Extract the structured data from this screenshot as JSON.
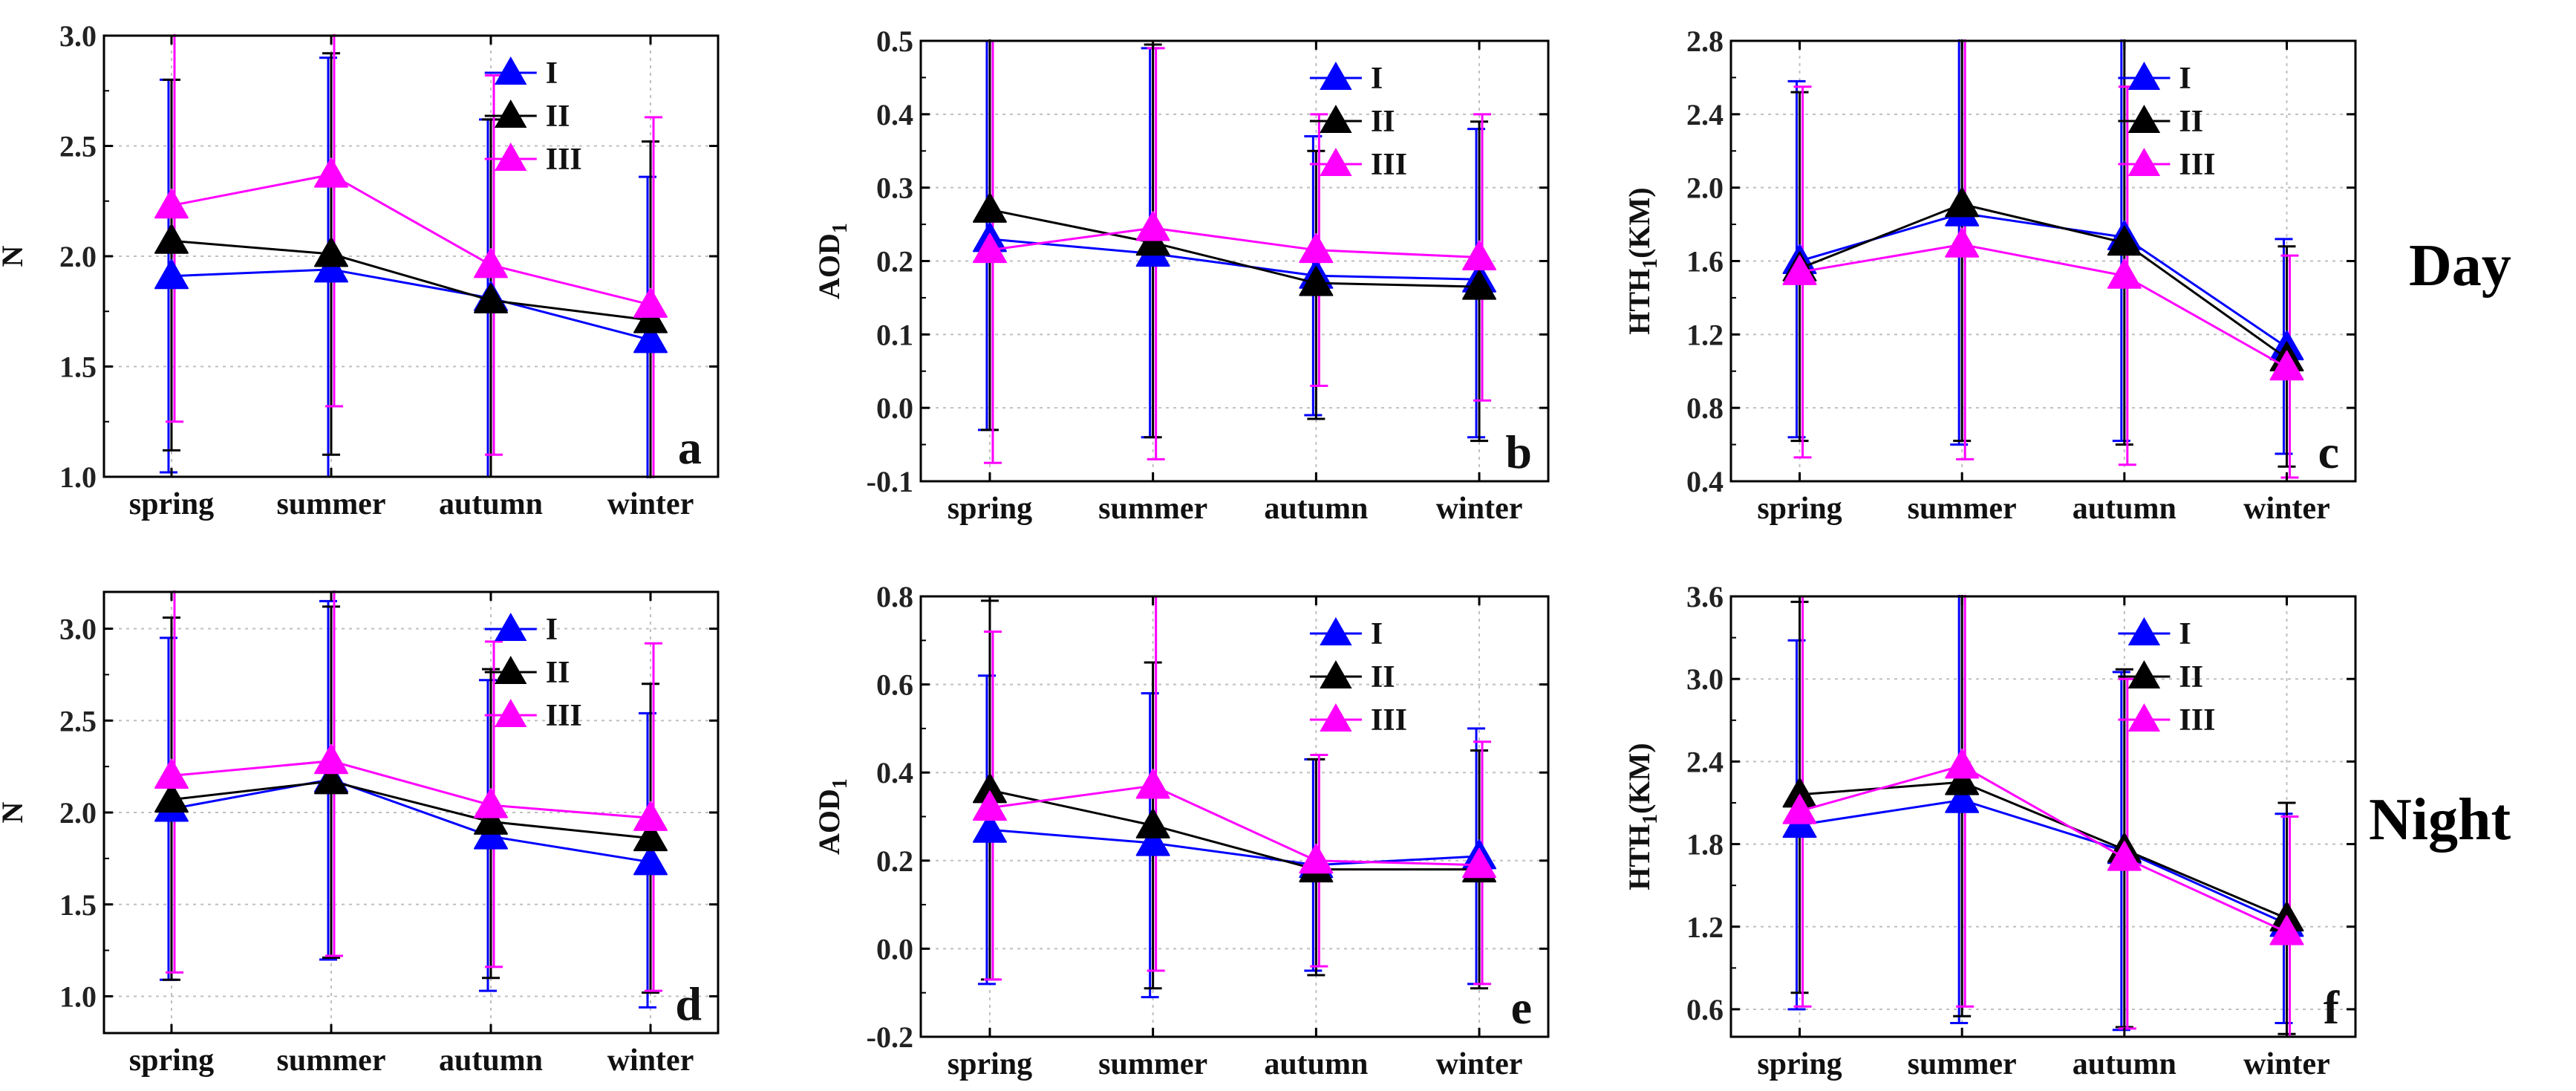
{
  "colors": {
    "I": "#0000ff",
    "II": "#000000",
    "III": "#ff00ff",
    "grid": "#bfbfbf",
    "axis": "#000000"
  },
  "row_labels": {
    "day": "Day",
    "night": "Night"
  },
  "chart_data": [
    {
      "panel": "a",
      "type": "line",
      "ylabel": "N",
      "ylim": [
        1.0,
        3.0
      ],
      "yticks": [
        "1.0",
        "1.5",
        "2.0",
        "2.5",
        "3.0"
      ],
      "categories": [
        "spring",
        "summer",
        "autumn",
        "winter"
      ],
      "legend_position": "top-right",
      "series": [
        {
          "name": "I",
          "values": [
            1.91,
            1.94,
            1.81,
            1.62
          ],
          "err_low": [
            1.02,
            1.0,
            1.0,
            0.88
          ],
          "err_high": [
            2.8,
            2.9,
            2.62,
            2.36
          ]
        },
        {
          "name": "II",
          "values": [
            2.07,
            2.01,
            1.8,
            1.71
          ],
          "err_low": [
            1.12,
            1.1,
            1.0,
            0.9
          ],
          "err_high": [
            2.8,
            2.92,
            2.62,
            2.52
          ]
        },
        {
          "name": "III",
          "values": [
            2.23,
            2.37,
            1.96,
            1.78
          ],
          "err_low": [
            1.25,
            1.32,
            1.1,
            0.93
          ],
          "err_high": [
            3.2,
            3.4,
            2.82,
            2.63
          ]
        }
      ]
    },
    {
      "panel": "b",
      "type": "line",
      "ylabel": "AOD",
      "ylabel_sub": "1",
      "ylim": [
        -0.1,
        0.5
      ],
      "yticks": [
        "-0.1",
        "0.0",
        "0.1",
        "0.2",
        "0.3",
        "0.4",
        "0.5"
      ],
      "categories": [
        "spring",
        "summer",
        "autumn",
        "winter"
      ],
      "legend_position": "top-right",
      "series": [
        {
          "name": "I",
          "values": [
            0.23,
            0.21,
            0.18,
            0.175
          ],
          "err_low": [
            -0.03,
            -0.04,
            -0.01,
            -0.04
          ],
          "err_high": [
            0.5,
            0.49,
            0.37,
            0.38
          ]
        },
        {
          "name": "II",
          "values": [
            0.27,
            0.225,
            0.17,
            0.165
          ],
          "err_low": [
            -0.03,
            -0.04,
            -0.015,
            -0.045
          ],
          "err_high": [
            0.57,
            0.495,
            0.35,
            0.39
          ]
        },
        {
          "name": "III",
          "values": [
            0.215,
            0.245,
            0.215,
            0.205
          ],
          "err_low": [
            -0.075,
            -0.07,
            0.03,
            0.01
          ],
          "err_high": [
            0.5,
            0.49,
            0.4,
            0.4
          ]
        }
      ]
    },
    {
      "panel": "c",
      "type": "line",
      "ylabel": "HTH",
      "ylabel_sub": "1",
      "ylabel_suffix": "(KM)",
      "ylim": [
        0.4,
        2.8
      ],
      "yticks": [
        "0.4",
        "0.8",
        "1.2",
        "1.6",
        "2.0",
        "2.4",
        "2.8"
      ],
      "categories": [
        "spring",
        "summer",
        "autumn",
        "winter"
      ],
      "legend_position": "top-right",
      "series": [
        {
          "name": "I",
          "values": [
            1.6,
            1.86,
            1.73,
            1.13
          ],
          "err_low": [
            0.64,
            0.6,
            0.62,
            0.55
          ],
          "err_high": [
            2.58,
            3.0,
            2.9,
            1.72
          ]
        },
        {
          "name": "II",
          "values": [
            1.56,
            1.91,
            1.7,
            1.07
          ],
          "err_low": [
            0.62,
            0.62,
            0.6,
            0.48
          ],
          "err_high": [
            2.52,
            3.1,
            2.82,
            1.68
          ]
        },
        {
          "name": "III",
          "values": [
            1.54,
            1.69,
            1.52,
            1.02
          ],
          "err_low": [
            0.53,
            0.52,
            0.49,
            0.42
          ],
          "err_high": [
            2.55,
            2.9,
            2.55,
            1.63
          ]
        }
      ]
    },
    {
      "panel": "d",
      "type": "line",
      "ylabel": "N",
      "ylim": [
        0.8,
        3.2
      ],
      "yticks": [
        "1.0",
        "1.5",
        "2.0",
        "2.5",
        "3.0"
      ],
      "categories": [
        "spring",
        "summer",
        "autumn",
        "winter"
      ],
      "legend_position": "top-right",
      "series": [
        {
          "name": "I",
          "values": [
            2.02,
            2.18,
            1.87,
            1.73
          ],
          "err_low": [
            1.09,
            1.2,
            1.03,
            0.94
          ],
          "err_high": [
            2.95,
            3.15,
            2.72,
            2.54
          ]
        },
        {
          "name": "II",
          "values": [
            2.07,
            2.17,
            1.95,
            1.86
          ],
          "err_low": [
            1.09,
            1.21,
            1.1,
            1.02
          ],
          "err_high": [
            3.06,
            3.12,
            2.78,
            2.7
          ]
        },
        {
          "name": "III",
          "values": [
            2.2,
            2.28,
            2.04,
            1.97
          ],
          "err_low": [
            1.13,
            1.22,
            1.16,
            1.03
          ],
          "err_high": [
            3.3,
            3.4,
            2.93,
            2.92
          ]
        }
      ]
    },
    {
      "panel": "e",
      "type": "line",
      "ylabel": "AOD",
      "ylabel_sub": "1",
      "ylim": [
        -0.2,
        0.8
      ],
      "yticks": [
        "-0.2",
        "0.0",
        "0.2",
        "0.4",
        "0.6",
        "0.8"
      ],
      "categories": [
        "spring",
        "summer",
        "autumn",
        "winter"
      ],
      "legend_position": "top-right",
      "series": [
        {
          "name": "I",
          "values": [
            0.27,
            0.24,
            0.19,
            0.21
          ],
          "err_low": [
            -0.08,
            -0.11,
            -0.05,
            -0.08
          ],
          "err_high": [
            0.62,
            0.58,
            0.43,
            0.5
          ]
        },
        {
          "name": "II",
          "values": [
            0.36,
            0.28,
            0.18,
            0.18
          ],
          "err_low": [
            -0.07,
            -0.09,
            -0.06,
            -0.09
          ],
          "err_high": [
            0.79,
            0.65,
            0.43,
            0.45
          ]
        },
        {
          "name": "III",
          "values": [
            0.32,
            0.37,
            0.2,
            0.19
          ],
          "err_low": [
            -0.07,
            -0.05,
            -0.04,
            -0.08
          ],
          "err_high": [
            0.72,
            0.8,
            0.44,
            0.47
          ]
        }
      ]
    },
    {
      "panel": "f",
      "type": "line",
      "ylabel": "HTH",
      "ylabel_sub": "1",
      "ylabel_suffix": "(KM)",
      "ylim": [
        0.4,
        3.6
      ],
      "yticks": [
        "0.6",
        "1.2",
        "1.8",
        "2.4",
        "3.0",
        "3.6"
      ],
      "categories": [
        "spring",
        "summer",
        "autumn",
        "winter"
      ],
      "legend_position": "top-right",
      "series": [
        {
          "name": "I",
          "values": [
            1.94,
            2.12,
            1.75,
            1.22
          ],
          "err_low": [
            0.6,
            0.5,
            0.45,
            0.5
          ],
          "err_high": [
            3.28,
            3.7,
            3.05,
            2.02
          ]
        },
        {
          "name": "II",
          "values": [
            2.16,
            2.25,
            1.76,
            1.26
          ],
          "err_low": [
            0.72,
            0.55,
            0.47,
            0.42
          ],
          "err_high": [
            3.56,
            3.9,
            3.07,
            2.1
          ]
        },
        {
          "name": "III",
          "values": [
            2.04,
            2.37,
            1.7,
            1.16
          ],
          "err_low": [
            0.62,
            0.62,
            0.46,
            0.4
          ],
          "err_high": [
            3.6,
            3.8,
            3.0,
            2.0
          ]
        }
      ]
    }
  ]
}
